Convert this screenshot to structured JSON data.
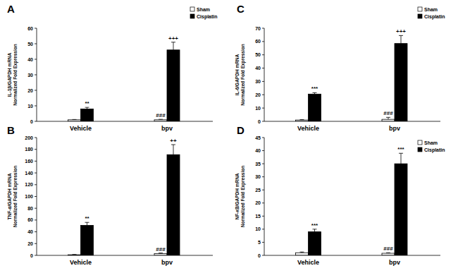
{
  "chart_data": [
    {
      "type": "bar",
      "title": "A",
      "y_label": [
        "IL-1β/GAPDH mRNA",
        "Normalized Fold Expression"
      ],
      "categories": [
        "Vehicle",
        "bpv"
      ],
      "series": [
        {
          "name": "Sham",
          "color": "#ffffff",
          "values": [
            1,
            1
          ],
          "errors": [
            0.2,
            0.3
          ],
          "annotations": [
            null,
            "###"
          ]
        },
        {
          "name": "Cisplatin",
          "color": "#000000",
          "values": [
            8,
            46
          ],
          "errors": [
            1,
            5
          ],
          "annotations": [
            "**",
            "+++"
          ]
        }
      ],
      "ylim": [
        0,
        60
      ],
      "yticks": [
        0,
        10,
        20,
        30,
        40,
        50,
        60
      ],
      "grid": false,
      "legend": "top-right"
    },
    {
      "type": "bar",
      "title": "B",
      "y_label": [
        "TNF-α/GAPDH mRNA",
        "Normalized Fold Expression"
      ],
      "categories": [
        "Vehicle",
        "bpv"
      ],
      "series": [
        {
          "name": "Sham",
          "color": "#ffffff",
          "values": [
            1,
            3
          ],
          "errors": [
            0.5,
            1
          ],
          "annotations": [
            null,
            "###"
          ]
        },
        {
          "name": "Cisplatin",
          "color": "#000000",
          "values": [
            51,
            171
          ],
          "errors": [
            5,
            17
          ],
          "annotations": [
            "**",
            "++"
          ]
        }
      ],
      "ylim": [
        0,
        200
      ],
      "yticks": [
        0,
        20,
        40,
        60,
        80,
        100,
        120,
        140,
        160,
        180,
        200
      ],
      "grid": false
    },
    {
      "type": "bar",
      "title": "C",
      "y_label": [
        "IL-6/GAPDH mRNA",
        "Normalized Fold Expression"
      ],
      "categories": [
        "Vehicle",
        "bpv"
      ],
      "series": [
        {
          "name": "Sham",
          "color": "#ffffff",
          "values": [
            1,
            1.5
          ],
          "errors": [
            0.3,
            1.5
          ],
          "annotations": [
            null,
            "###"
          ]
        },
        {
          "name": "Cisplatin",
          "color": "#000000",
          "values": [
            20.5,
            58.5
          ],
          "errors": [
            1,
            6
          ],
          "annotations": [
            "***",
            "+++"
          ]
        }
      ],
      "ylim": [
        0,
        70
      ],
      "yticks": [
        0,
        10,
        20,
        30,
        40,
        50,
        60,
        70
      ],
      "grid": false,
      "legend": "top-right"
    },
    {
      "type": "bar",
      "title": "D",
      "y_label": [
        "NF-κB/GAPDH mRNA",
        "Normalized Fold Expression"
      ],
      "categories": [
        "Vehicle",
        "bpv"
      ],
      "series": [
        {
          "name": "Sham",
          "color": "#ffffff",
          "values": [
            1,
            0.8
          ],
          "errors": [
            0.3,
            0.2
          ],
          "annotations": [
            null,
            "###"
          ]
        },
        {
          "name": "Cisplatin",
          "color": "#000000",
          "values": [
            9,
            35
          ],
          "errors": [
            1,
            4
          ],
          "annotations": [
            "***",
            "***"
          ]
        }
      ],
      "ylim": [
        0,
        45
      ],
      "yticks": [
        0,
        5,
        10,
        15,
        20,
        25,
        30,
        35,
        40,
        45
      ],
      "grid": false,
      "legend": "top-right"
    }
  ]
}
